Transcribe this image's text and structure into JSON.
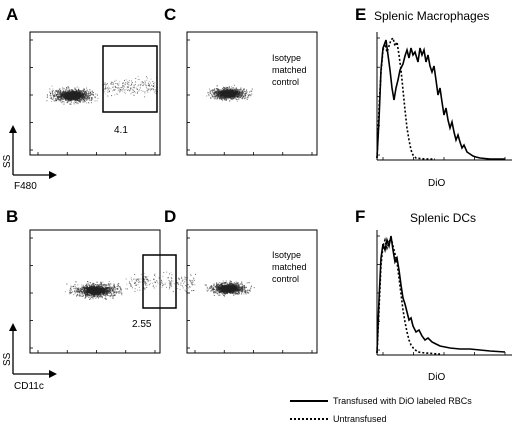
{
  "panels": {
    "A": {
      "letter": "A",
      "gate_value": "4.1",
      "y_axis": "SS",
      "x_axis": "F480"
    },
    "B": {
      "letter": "B",
      "gate_value": "2.55",
      "y_axis": "SS",
      "x_axis": "CD11c"
    },
    "C": {
      "letter": "C",
      "annotation": [
        "Isotype",
        "matched",
        "control"
      ]
    },
    "D": {
      "letter": "D",
      "annotation": [
        "Isotype",
        "matched",
        "control"
      ]
    },
    "E": {
      "letter": "E",
      "title": "Splenic Macrophages",
      "x_axis": "DiO"
    },
    "F": {
      "letter": "F",
      "title": "Splenic DCs",
      "x_axis": "DiO"
    }
  },
  "legend": {
    "solid": "Transfused with DiO labeled RBCs",
    "dotted": "Untransfused"
  },
  "colors": {
    "ink": "#000000",
    "dots": "#3a3a3a",
    "background": "#ffffff"
  }
}
